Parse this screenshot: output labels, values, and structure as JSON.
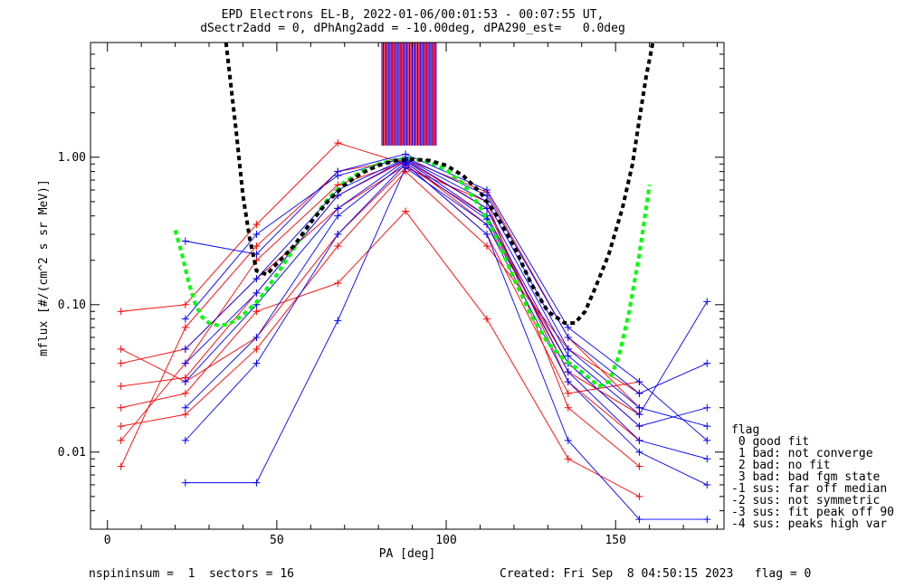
{
  "header": {
    "title_line1": "EPD Electrons EL-B, 2022-01-06/00:01:53 - 00:07:55 UT,",
    "title_line2": "dSectr2add = 0, dPhAng2add = -10.00deg, dPA290_est=   0.0deg"
  },
  "footer": {
    "left": "nspininsum =  1  sectors = 16",
    "right": "Created: Fri Sep  8 04:50:15 2023   flag = 0"
  },
  "flag_legend": {
    "title": "flag",
    "items": [
      " 0 good fit",
      " 1 bad: not converge",
      " 2 bad: no fit",
      " 3 bad: bad fgm state",
      "-1 sus: far off median",
      "-2 sus: not symmetric",
      "-3 sus: fit peak off 90",
      "-4 sus: peaks high var"
    ]
  },
  "colors": {
    "red_series": "#ff0000",
    "blue_series": "#0000ff",
    "fit_black": "#000000",
    "fit_green": "#00ff00"
  },
  "chart_data": {
    "type": "line",
    "xlabel": "PA [deg]",
    "ylabel": "mflux [#/(cm^2 s sr MeV)]",
    "xlim": [
      -5,
      182
    ],
    "ylim": [
      0.003,
      6.0
    ],
    "yscale": "log",
    "x_ticks": [
      0,
      50,
      100,
      150
    ],
    "y_ticks": [
      0.01,
      0.1,
      1.0
    ],
    "y_tick_labels": [
      "0.01",
      "0.10",
      "1.00"
    ],
    "series": [
      {
        "color": "red",
        "x": [
          4,
          23,
          44,
          68,
          88,
          112,
          136,
          157
        ],
        "y": [
          0.028,
          0.032,
          0.12,
          0.55,
          0.95,
          0.45,
          0.03,
          0.012
        ]
      },
      {
        "color": "red",
        "x": [
          4,
          23,
          44,
          68,
          88,
          112,
          136,
          157
        ],
        "y": [
          0.012,
          0.04,
          0.2,
          0.65,
          0.93,
          0.35,
          0.04,
          0.015
        ]
      },
      {
        "color": "red",
        "x": [
          4,
          23,
          44,
          68,
          88,
          112,
          136,
          157
        ],
        "y": [
          0.05,
          0.03,
          0.06,
          0.3,
          0.85,
          0.5,
          0.02,
          0.008
        ]
      },
      {
        "color": "red",
        "x": [
          4,
          23,
          44,
          68,
          88,
          112,
          136,
          157
        ],
        "y": [
          0.008,
          0.07,
          0.25,
          0.8,
          0.97,
          0.58,
          0.06,
          0.02
        ]
      },
      {
        "color": "red",
        "x": [
          4,
          23,
          44,
          68,
          88,
          112,
          136,
          157
        ],
        "y": [
          0.09,
          0.1,
          0.35,
          1.25,
          0.9,
          0.3,
          0.025,
          0.03
        ]
      },
      {
        "color": "red",
        "x": [
          4,
          23,
          44,
          68,
          88,
          112,
          136,
          157
        ],
        "y": [
          0.02,
          0.025,
          0.09,
          0.14,
          0.43,
          0.08,
          0.009,
          0.005
        ]
      },
      {
        "color": "red",
        "x": [
          4,
          23,
          44,
          68,
          88,
          112,
          136,
          157
        ],
        "y": [
          0.04,
          0.05,
          0.15,
          0.45,
          0.88,
          0.4,
          0.035,
          0.018
        ]
      },
      {
        "color": "red",
        "x": [
          4,
          23,
          44,
          68,
          88,
          112,
          136,
          157
        ],
        "y": [
          0.015,
          0.018,
          0.05,
          0.25,
          0.8,
          0.25,
          0.05,
          0.025
        ]
      },
      {
        "color": "blue",
        "x": [
          23,
          44,
          68,
          88,
          112,
          136,
          157,
          177
        ],
        "y": [
          0.05,
          0.15,
          0.6,
          0.98,
          0.5,
          0.05,
          0.02,
          0.015
        ]
      },
      {
        "color": "blue",
        "x": [
          23,
          44,
          68,
          88,
          112,
          136,
          157,
          177
        ],
        "y": [
          0.03,
          0.1,
          0.45,
          0.95,
          0.4,
          0.04,
          0.015,
          0.02
        ]
      },
      {
        "color": "blue",
        "x": [
          23,
          44,
          68,
          88,
          112,
          136,
          157,
          177
        ],
        "y": [
          0.27,
          0.22,
          0.8,
          1.05,
          0.6,
          0.07,
          0.03,
          0.012
        ]
      },
      {
        "color": "blue",
        "x": [
          23,
          44,
          68,
          88,
          112,
          136,
          157,
          177
        ],
        "y": [
          0.0062,
          0.0062,
          0.078,
          0.85,
          0.35,
          0.03,
          0.01,
          0.006
        ]
      },
      {
        "color": "blue",
        "x": [
          23,
          44,
          68,
          88,
          112,
          136,
          157,
          177
        ],
        "y": [
          0.012,
          0.04,
          0.3,
          0.9,
          0.3,
          0.012,
          0.0035,
          0.0035
        ]
      },
      {
        "color": "blue",
        "x": [
          23,
          44,
          68,
          88,
          112,
          136,
          157,
          177
        ],
        "y": [
          0.08,
          0.3,
          0.75,
          1.0,
          0.55,
          0.06,
          0.025,
          0.04
        ]
      },
      {
        "color": "blue",
        "x": [
          23,
          44,
          68,
          88,
          112,
          136,
          157,
          177
        ],
        "y": [
          0.04,
          0.12,
          0.55,
          0.97,
          0.45,
          0.045,
          0.018,
          0.105
        ]
      },
      {
        "color": "blue",
        "x": [
          23,
          44,
          68,
          88,
          112,
          136,
          157,
          177
        ],
        "y": [
          0.02,
          0.06,
          0.4,
          0.92,
          0.38,
          0.035,
          0.012,
          0.009
        ]
      }
    ],
    "fit_black": {
      "x": [
        35,
        38,
        40,
        42,
        44,
        47,
        50,
        55,
        60,
        65,
        70,
        75,
        80,
        85,
        90,
        95,
        100,
        105,
        110,
        115,
        120,
        125,
        130,
        135,
        138,
        141,
        144,
        148,
        152,
        155,
        157,
        159,
        161
      ],
      "y": [
        6.0,
        1.5,
        0.55,
        0.28,
        0.17,
        0.16,
        0.19,
        0.25,
        0.36,
        0.5,
        0.65,
        0.78,
        0.88,
        0.95,
        0.97,
        0.95,
        0.88,
        0.75,
        0.58,
        0.4,
        0.25,
        0.14,
        0.09,
        0.075,
        0.075,
        0.09,
        0.13,
        0.22,
        0.45,
        0.9,
        1.8,
        3.5,
        6.0
      ]
    },
    "fit_green": {
      "x": [
        20,
        22,
        24,
        26,
        28,
        30,
        33,
        36,
        40,
        45,
        50,
        55,
        60,
        65,
        70,
        75,
        80,
        85,
        90,
        95,
        100,
        105,
        110,
        115,
        120,
        125,
        130,
        135,
        140,
        145,
        148,
        151,
        154,
        157,
        159,
        160
      ],
      "y": [
        0.32,
        0.22,
        0.14,
        0.1,
        0.082,
        0.075,
        0.072,
        0.074,
        0.085,
        0.11,
        0.16,
        0.24,
        0.36,
        0.52,
        0.68,
        0.8,
        0.9,
        0.96,
        0.98,
        0.93,
        0.82,
        0.66,
        0.46,
        0.28,
        0.15,
        0.085,
        0.055,
        0.042,
        0.035,
        0.028,
        0.03,
        0.045,
        0.09,
        0.22,
        0.45,
        0.65
      ]
    },
    "top_bars": {
      "x_range": [
        81,
        97
      ],
      "count": 42,
      "colors": [
        "red",
        "blue"
      ]
    }
  }
}
